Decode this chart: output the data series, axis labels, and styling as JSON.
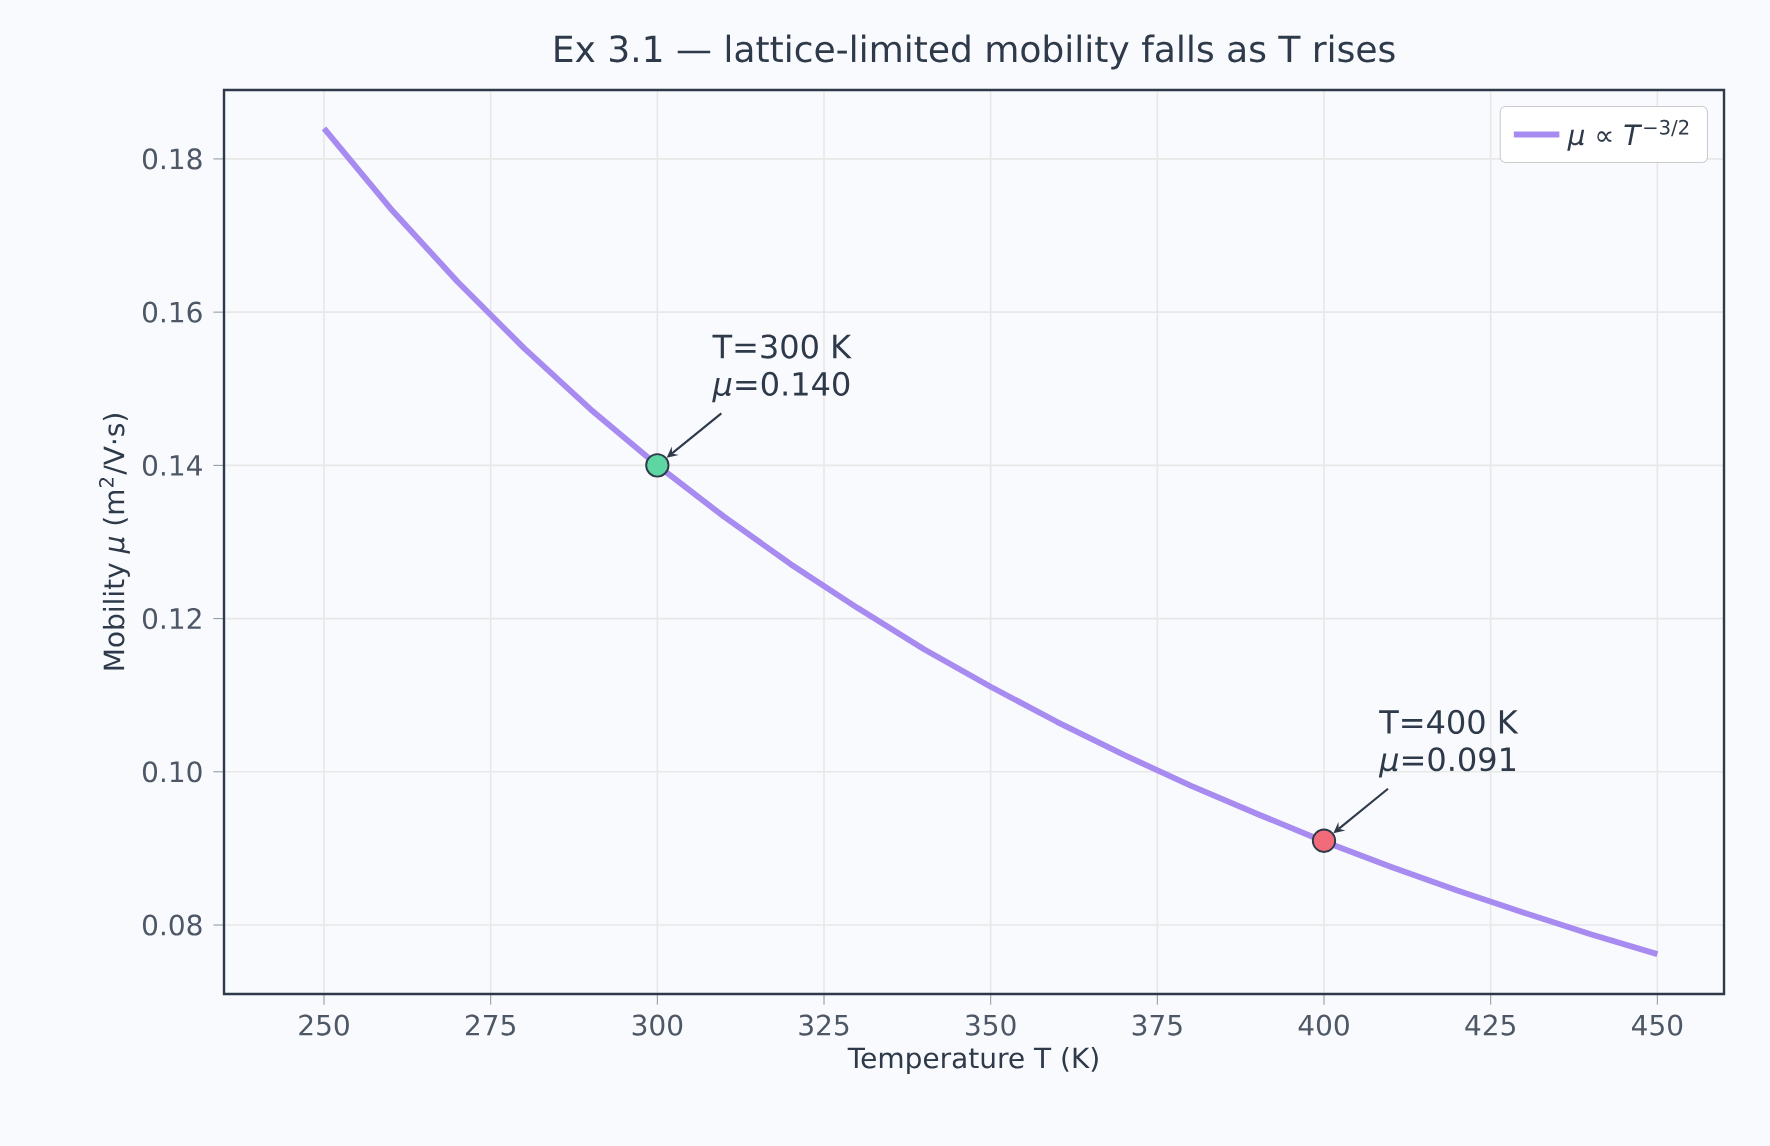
{
  "chart_data": {
    "type": "line",
    "title": "Ex 3.1 — lattice-limited mobility falls as T rises",
    "xlabel": "Temperature  T  (K)",
    "ylabel": "Mobility  *μ*  (m$^{2}$/V·s)",
    "x": [
      250,
      260,
      270,
      280,
      290,
      300,
      310,
      320,
      330,
      340,
      350,
      360,
      370,
      380,
      390,
      400,
      410,
      420,
      430,
      440,
      450
    ],
    "series": [
      {
        "name": "*μ* ∝ *T*$^{−3/2}$",
        "color": "#a78bf0",
        "line_style": "solid",
        "marker": "none",
        "values": [
          0.184,
          0.1735,
          0.164,
          0.1553,
          0.1473,
          0.14,
          0.1333,
          0.1271,
          0.1214,
          0.116,
          0.1111,
          0.1065,
          0.1022,
          0.0982,
          0.0945,
          0.0909,
          0.0876,
          0.0845,
          0.0816,
          0.0788,
          0.0762
        ]
      },
      {
        "type": "scatter",
        "color": "#5ed6a4",
        "marker": "circle",
        "x": [
          300
        ],
        "values": [
          0.14
        ]
      },
      {
        "type": "scatter",
        "color": "#f26b7a",
        "marker": "circle",
        "x": [
          400
        ],
        "values": [
          0.091
        ]
      }
    ],
    "annotations": [
      "T=300 K",
      {
        "text": "*μ*=0.140",
        "x": 300,
        "y": 0.14
      },
      "T=400 K",
      {
        "text": "*μ*=0.091",
        "x": 400,
        "y": 0.091
      }
    ],
    "xlim": [
      235,
      460
    ],
    "ylim": [
      0.071,
      0.189
    ],
    "xticks": [
      250,
      275,
      300,
      325,
      350,
      375,
      400,
      425,
      450
    ],
    "yticks": [
      {
        "value": 0.08,
        "label": "0.08"
      },
      {
        "value": 0.1,
        "label": "0.10"
      },
      {
        "value": 0.12,
        "label": "0.12"
      },
      {
        "value": 0.14,
        "label": "0.14"
      },
      {
        "value": 0.16,
        "label": "0.16"
      },
      {
        "value": 0.18,
        "label": "0.18"
      }
    ],
    "grid": true,
    "legend": "top right"
  }
}
